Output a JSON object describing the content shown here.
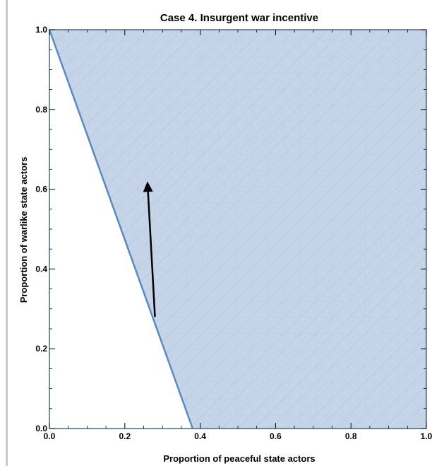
{
  "chart_data": {
    "type": "area",
    "title": "Case 4. Insurgent war incentive",
    "xlabel": "Proportion of peaceful state actors",
    "ylabel": "Proportion of warlike state actors",
    "xlim": [
      0,
      1
    ],
    "ylim": [
      0,
      1
    ],
    "x_ticks": [
      "0.0",
      "0.2",
      "0.4",
      "0.6",
      "0.8",
      "1.0"
    ],
    "y_ticks": [
      "0.0",
      "0.2",
      "0.4",
      "0.6",
      "0.8",
      "1.0"
    ],
    "boundary_line": {
      "x": [
        0.0,
        0.38
      ],
      "y": [
        1.0,
        0.0
      ]
    },
    "shaded_region": {
      "description_points_x": [
        0.0,
        1.0,
        1.0,
        0.38
      ],
      "description_points_y": [
        1.0,
        1.0,
        0.0,
        0.0
      ]
    },
    "arrow": {
      "from": [
        0.28,
        0.28
      ],
      "to": [
        0.26,
        0.62
      ]
    },
    "colors": {
      "fill": "#c6d4e7",
      "boundary": "#5b88c0",
      "frame": "#1f3f66",
      "arrow": "#000000"
    },
    "grid": false
  }
}
